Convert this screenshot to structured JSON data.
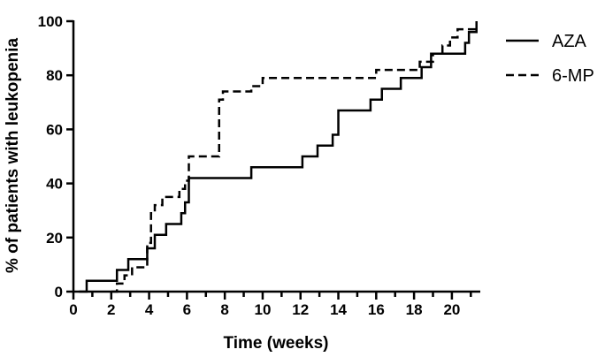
{
  "chart_data": {
    "type": "line",
    "step": true,
    "title": "",
    "xlabel": "Time (weeks)",
    "ylabel": "% of patients with leukopenia",
    "xlim": [
      0,
      21.5
    ],
    "ylim": [
      0,
      100
    ],
    "x_ticks": [
      0,
      2,
      4,
      6,
      8,
      10,
      12,
      14,
      16,
      18,
      20
    ],
    "x_tick_labels": [
      "0",
      "2",
      "4",
      "6",
      "8",
      "10",
      "12",
      "14",
      "16",
      "18",
      "20"
    ],
    "y_ticks": [
      0,
      20,
      40,
      60,
      80,
      100
    ],
    "y_tick_labels": [
      "0",
      "20",
      "40",
      "60",
      "80",
      "100"
    ],
    "grid": false,
    "legend_position": "top-right",
    "colors": {
      "line": "#000000"
    },
    "series": [
      {
        "name": "AZA",
        "style": "solid",
        "x": [
          0.3,
          0.7,
          2.3,
          2.9,
          3.9,
          4.3,
          4.9,
          5.7,
          5.9,
          6.1,
          9.4,
          12.1,
          12.9,
          13.7,
          14.0,
          15.7,
          16.3,
          17.3,
          18.4,
          18.9,
          20.7,
          20.9,
          21.3
        ],
        "y": [
          0,
          4,
          8,
          12,
          16,
          21,
          25,
          29,
          33,
          42,
          46,
          50,
          54,
          58,
          67,
          71,
          75,
          79,
          83,
          88,
          92,
          96,
          100
        ]
      },
      {
        "name": "6-MP",
        "style": "dashed",
        "x": [
          2.0,
          2.3,
          2.7,
          3.1,
          3.9,
          4.1,
          4.3,
          4.7,
          5.6,
          5.9,
          6.1,
          7.7,
          7.9,
          9.4,
          10.0,
          16.0,
          18.3,
          19.0,
          19.5,
          19.9,
          20.3,
          21.3
        ],
        "y": [
          0,
          3,
          6,
          9,
          18,
          29,
          32,
          35,
          38,
          41,
          50,
          71,
          74,
          76,
          79,
          82,
          85,
          88,
          91,
          94,
          97,
          97
        ]
      }
    ]
  }
}
